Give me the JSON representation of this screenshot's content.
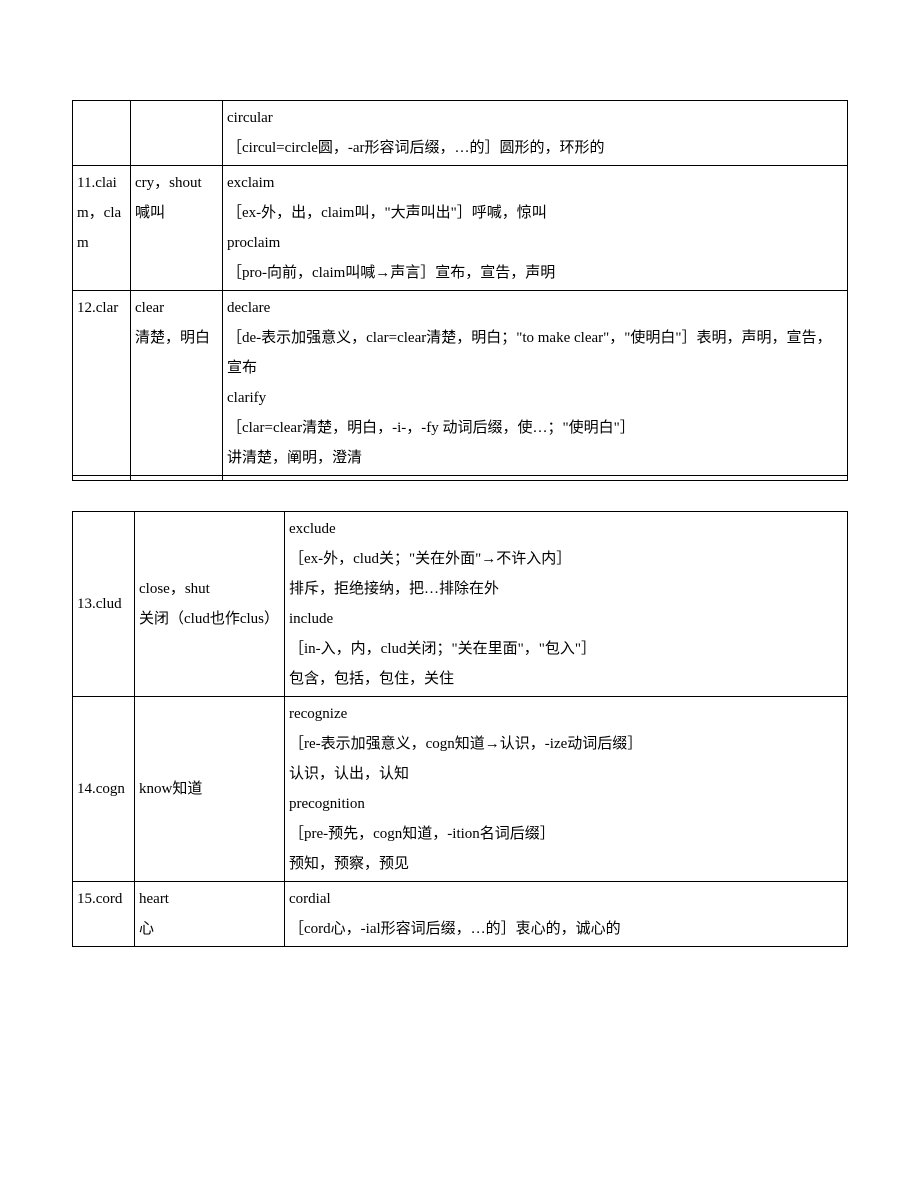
{
  "table1": {
    "rows": [
      {
        "col1": "",
        "col2": "",
        "col3": "circular\n［circul=circle圆，-ar形容词后缀，…的］圆形的，环形的"
      },
      {
        "col1": "11.claim，clam",
        "col2": "cry，shout\n喊叫",
        "col3": "exclaim\n［ex-外，出，claim叫，\"大声叫出\"］呼喊，惊叫\nproclaim\n［pro-向前，claim叫喊→声言］宣布，宣告，声明"
      },
      {
        "col1": "12.clar",
        "col2": "clear\n清楚，明白",
        "col3": "declare\n［de-表示加强意义，clar=clear清楚，明白；\"to make clear\"，\"使明白\"］表明，声明，宣告，宣布\nclarify\n［clar=clear清楚，明白，-i-，-fy 动词后缀，使…；\"使明白\"］\n讲清楚，阐明，澄清"
      },
      {
        "col1": "",
        "col2": "",
        "col3": ""
      }
    ]
  },
  "table2": {
    "rows": [
      {
        "col1": "13.clud",
        "col2": "close，shut\n关闭（clud也作clus）",
        "col3": "exclude\n［ex-外，clud关；\"关在外面\"→不许入内］\n排斥，拒绝接纳，把…排除在外\ninclude\n［in-入，内，clud关闭；\"关在里面\"，\"包入\"］\n包含，包括，包住，关住"
      },
      {
        "col1": "14.cogn",
        "col2": "know知道",
        "col3": "recognize\n［re-表示加强意义，cogn知道→认识，-ize动词后缀］\n认识，认出，认知\nprecognition\n［pre-预先，cogn知道，-ition名词后缀］\n预知，预察，预见"
      },
      {
        "col1": "15.cord",
        "col2": "heart\n心",
        "col3": "cordial\n［cord心，-ial形容词后缀，…的］衷心的，诚心的"
      }
    ]
  }
}
